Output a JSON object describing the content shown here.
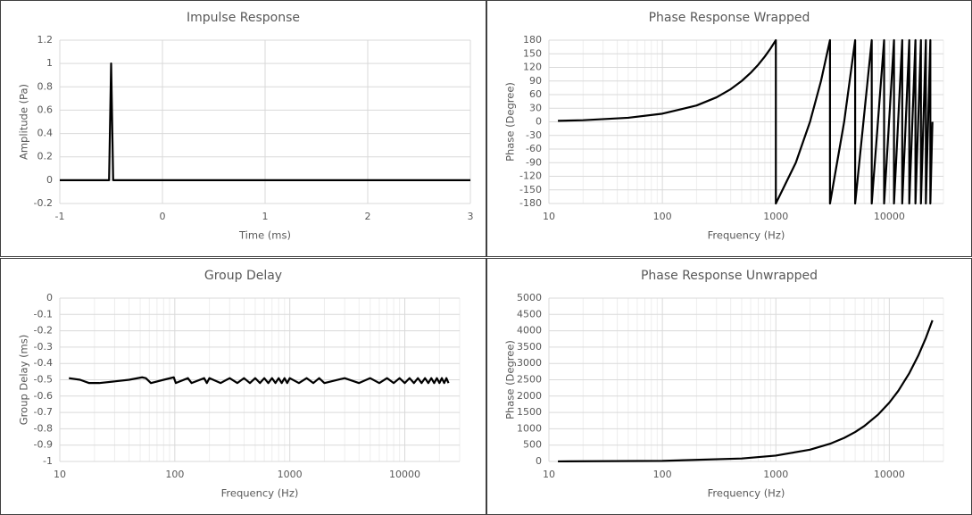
{
  "chart_data": [
    {
      "type": "line",
      "title": "Impulse Response",
      "xlabel": "Time (ms)",
      "ylabel": "Amplitude (Pa)",
      "color": "#000000",
      "x": [
        -1,
        -0.52,
        -0.5,
        -0.48,
        3
      ],
      "values": [
        0,
        0,
        1,
        0,
        0
      ],
      "xlim": [
        -1,
        3
      ],
      "xticks": [
        -1,
        0,
        1,
        2,
        3
      ],
      "ylim": [
        -0.2,
        1.2
      ],
      "yticks": [
        -0.2,
        0,
        0.2,
        0.4,
        0.6,
        0.8,
        1,
        1.2
      ],
      "grid": true
    },
    {
      "type": "line",
      "title": "Phase Response Wrapped",
      "xlabel": "Frequency (Hz)",
      "ylabel": "Phase (Degree)",
      "color": "#000000",
      "xscale": "log",
      "minor_grid": true,
      "x": [
        12,
        20,
        50,
        100,
        200,
        300,
        400,
        500,
        600,
        700,
        800,
        900,
        1000,
        1000,
        1500,
        2000,
        2500,
        3000,
        3000,
        4000,
        5000,
        5000,
        7000,
        7000,
        9000,
        9000,
        11000,
        11000,
        13000,
        13000,
        15000,
        15000,
        17000,
        17000,
        19000,
        19000,
        21000,
        21000,
        23000,
        23000,
        24000
      ],
      "values": [
        2.16,
        3.6,
        9,
        18,
        36,
        54,
        72,
        90,
        108,
        126,
        144,
        162,
        180,
        -180,
        -90,
        0,
        90,
        180,
        -180,
        0,
        180,
        -180,
        180,
        -180,
        180,
        -180,
        180,
        -180,
        180,
        -180,
        180,
        -180,
        180,
        -180,
        180,
        -180,
        180,
        -180,
        180,
        -180,
        0
      ],
      "xlim": [
        10,
        30000
      ],
      "xticks": [
        10,
        100,
        1000,
        10000
      ],
      "ylim": [
        -180,
        180
      ],
      "yticks": [
        -180,
        -150,
        -120,
        -90,
        -60,
        -30,
        0,
        30,
        60,
        90,
        120,
        150,
        180
      ],
      "grid": true
    },
    {
      "type": "line",
      "title": "Group Delay",
      "xlabel": "Frequency (Hz)",
      "ylabel": "Group Delay (ms)",
      "color": "#000000",
      "xscale": "log",
      "minor_grid": true,
      "x": [
        12,
        15,
        18,
        22,
        30,
        40,
        52,
        56,
        62,
        80,
        98,
        102,
        130,
        140,
        180,
        190,
        200,
        250,
        300,
        350,
        400,
        450,
        500,
        550,
        600,
        650,
        700,
        750,
        800,
        850,
        900,
        950,
        1000,
        1200,
        1400,
        1600,
        1800,
        2000,
        3000,
        4000,
        5000,
        6000,
        7000,
        8000,
        9000,
        10000,
        11000,
        12000,
        13000,
        14000,
        15000,
        16000,
        17000,
        18000,
        19000,
        20000,
        21000,
        22000,
        23000,
        24000
      ],
      "values": [
        -0.49,
        -0.5,
        -0.52,
        -0.52,
        -0.51,
        -0.5,
        -0.485,
        -0.49,
        -0.52,
        -0.5,
        -0.485,
        -0.52,
        -0.49,
        -0.52,
        -0.49,
        -0.52,
        -0.49,
        -0.52,
        -0.49,
        -0.52,
        -0.49,
        -0.52,
        -0.49,
        -0.52,
        -0.49,
        -0.52,
        -0.49,
        -0.52,
        -0.49,
        -0.52,
        -0.49,
        -0.52,
        -0.49,
        -0.52,
        -0.49,
        -0.52,
        -0.49,
        -0.52,
        -0.49,
        -0.52,
        -0.49,
        -0.52,
        -0.49,
        -0.52,
        -0.49,
        -0.52,
        -0.49,
        -0.52,
        -0.49,
        -0.52,
        -0.49,
        -0.52,
        -0.49,
        -0.52,
        -0.49,
        -0.52,
        -0.49,
        -0.52,
        -0.49,
        -0.52
      ],
      "xlim": [
        10,
        30000
      ],
      "xticks": [
        10,
        100,
        1000,
        10000
      ],
      "ylim": [
        -1,
        0
      ],
      "yticks": [
        -1,
        -0.9,
        -0.8,
        -0.7,
        -0.6,
        -0.5,
        -0.4,
        -0.3,
        -0.2,
        -0.1,
        0
      ],
      "grid": true
    },
    {
      "type": "line",
      "title": "Phase Response Unwrapped",
      "xlabel": "Frequency (Hz)",
      "ylabel": "Phase (Degree)",
      "color": "#000000",
      "xscale": "log",
      "minor_grid": true,
      "x": [
        12,
        100,
        500,
        1000,
        2000,
        3000,
        4000,
        5000,
        6000,
        8000,
        10000,
        12000,
        15000,
        18000,
        21000,
        24000
      ],
      "values": [
        2.16,
        18,
        90,
        180,
        360,
        540,
        720,
        900,
        1080,
        1440,
        1800,
        2160,
        2700,
        3240,
        3780,
        4320
      ],
      "xlim": [
        10,
        30000
      ],
      "xticks": [
        10,
        100,
        1000,
        10000
      ],
      "ylim": [
        0,
        5000
      ],
      "yticks": [
        0,
        500,
        1000,
        1500,
        2000,
        2500,
        3000,
        3500,
        4000,
        4500,
        5000
      ],
      "grid": true
    }
  ]
}
